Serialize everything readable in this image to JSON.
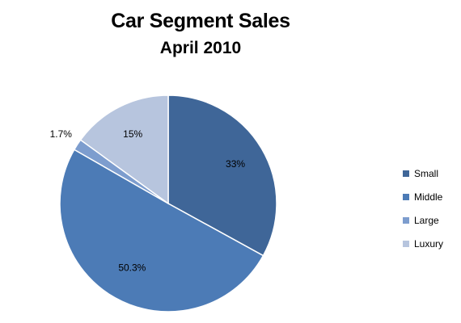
{
  "chart_data": {
    "type": "pie",
    "title": "Car Segment Sales",
    "subtitle": "April 2010",
    "categories": [
      "Small",
      "Middle",
      "Large",
      "Luxury"
    ],
    "values": [
      33,
      50.3,
      1.7,
      15
    ],
    "labels": [
      "33%",
      "50.3%",
      "1.7%",
      "15%"
    ],
    "colors": [
      "#3f6698",
      "#4c7bb6",
      "#7d9dce",
      "#b7c5de"
    ],
    "legend_position": "right"
  }
}
